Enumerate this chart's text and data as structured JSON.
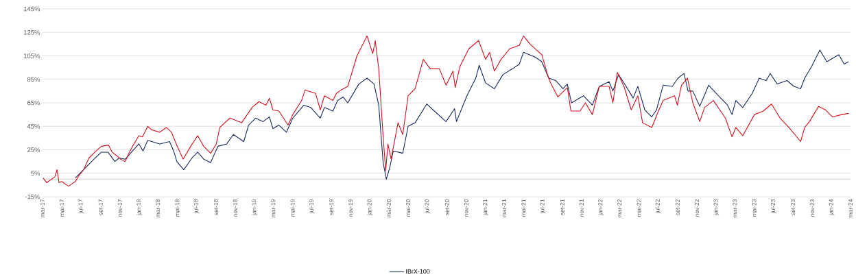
{
  "chart_data": {
    "type": "line",
    "legend": "bottom",
    "grid": "y",
    "marker": "none",
    "line_style": "solid",
    "xlim": [
      "2017-03",
      "2024-03"
    ],
    "xticks": [
      {
        "value": "2017-03",
        "label": "mar-17"
      },
      {
        "value": "2017-05",
        "label": "mai-17"
      },
      {
        "value": "2017-07",
        "label": "jul-17"
      },
      {
        "value": "2017-09",
        "label": "set-17"
      },
      {
        "value": "2017-11",
        "label": "nov-17"
      },
      {
        "value": "2018-01",
        "label": "jan-18"
      },
      {
        "value": "2018-03",
        "label": "mar-18"
      },
      {
        "value": "2018-05",
        "label": "mai-18"
      },
      {
        "value": "2018-07",
        "label": "jul-18"
      },
      {
        "value": "2018-09",
        "label": "set-18"
      },
      {
        "value": "2018-11",
        "label": "nov-18"
      },
      {
        "value": "2019-01",
        "label": "jan-19"
      },
      {
        "value": "2019-03",
        "label": "mar-19"
      },
      {
        "value": "2019-05",
        "label": "mai-19"
      },
      {
        "value": "2019-07",
        "label": "jul-19"
      },
      {
        "value": "2019-09",
        "label": "set-19"
      },
      {
        "value": "2019-11",
        "label": "nov-19"
      },
      {
        "value": "2020-01",
        "label": "jan-20"
      },
      {
        "value": "2020-03",
        "label": "mar-20"
      },
      {
        "value": "2020-05",
        "label": "mai-20"
      },
      {
        "value": "2020-07",
        "label": "jul-20"
      },
      {
        "value": "2020-09",
        "label": "set-20"
      },
      {
        "value": "2020-11",
        "label": "nov-20"
      },
      {
        "value": "2021-01",
        "label": "jan-21"
      },
      {
        "value": "2021-03",
        "label": "mar-21"
      },
      {
        "value": "2021-05",
        "label": "mai-21"
      },
      {
        "value": "2021-07",
        "label": "jul-21"
      },
      {
        "value": "2021-09",
        "label": "set-21"
      },
      {
        "value": "2021-11",
        "label": "nov-21"
      },
      {
        "value": "2022-01",
        "label": "jan-22"
      },
      {
        "value": "2022-03",
        "label": "mar-22"
      },
      {
        "value": "2022-05",
        "label": "mai-22"
      },
      {
        "value": "2022-07",
        "label": "jul-22"
      },
      {
        "value": "2022-09",
        "label": "set-22"
      },
      {
        "value": "2022-11",
        "label": "nov-22"
      },
      {
        "value": "2023-01",
        "label": "jan-23"
      },
      {
        "value": "2023-03",
        "label": "mar-23"
      },
      {
        "value": "2023-05",
        "label": "mai-23"
      },
      {
        "value": "2023-07",
        "label": "jul-23"
      },
      {
        "value": "2023-09",
        "label": "set-23"
      },
      {
        "value": "2023-11",
        "label": "nov-23"
      },
      {
        "value": "2024-01",
        "label": "jan-24"
      },
      {
        "value": "2024-03",
        "label": "mar-24"
      }
    ],
    "ylim": [
      -15,
      145
    ],
    "yticks": [
      {
        "value": -15,
        "label": "-15%"
      },
      {
        "value": 5,
        "label": "5%"
      },
      {
        "value": 25,
        "label": "25%"
      },
      {
        "value": 45,
        "label": "45%"
      },
      {
        "value": 65,
        "label": "65%"
      },
      {
        "value": 85,
        "label": "85%"
      },
      {
        "value": 105,
        "label": "105%"
      },
      {
        "value": 125,
        "label": "125%"
      },
      {
        "value": 145,
        "label": "145%"
      }
    ],
    "ref_lines": [
      {
        "axis": "y",
        "value": 0,
        "color": "#bfbfbf"
      }
    ],
    "series": [
      {
        "name": "IBrX-100",
        "color": "#14285a",
        "x": [
          "2017-06-13",
          "2017-07-20",
          "2017-08-11",
          "2017-09-03",
          "2017-09-24",
          "2017-10-16",
          "2017-10-29",
          "2017-11-18",
          "2017-12-11",
          "2017-12-31",
          "2018-01-13",
          "2018-01-28",
          "2018-03-07",
          "2018-04-07",
          "2018-04-20",
          "2018-04-30",
          "2018-05-22",
          "2018-06-17",
          "2018-07-05",
          "2018-07-24",
          "2018-08-15",
          "2018-09-07",
          "2018-10-05",
          "2018-10-26",
          "2018-11-28",
          "2018-12-13",
          "2019-01-04",
          "2019-01-28",
          "2019-02-17",
          "2019-02-28",
          "2019-03-19",
          "2019-04-12",
          "2019-05-02",
          "2019-06-06",
          "2019-06-28",
          "2019-07-28",
          "2019-08-10",
          "2019-09-06",
          "2019-09-21",
          "2019-10-08",
          "2019-10-23",
          "2019-11-27",
          "2019-12-23",
          "2020-01-14",
          "2020-01-29",
          "2020-02-12",
          "2020-02-22",
          "2020-03-04",
          "2020-03-15",
          "2020-04-14",
          "2020-05-01",
          "2020-05-23",
          "2020-06-29",
          "2020-07-23",
          "2020-08-29",
          "2020-09-25",
          "2020-10-01",
          "2020-11-03",
          "2020-12-01",
          "2020-12-12",
          "2021-01-01",
          "2021-01-29",
          "2021-02-25",
          "2021-03-27",
          "2021-04-18",
          "2021-05-01",
          "2021-06-07",
          "2021-06-28",
          "2021-07-20",
          "2021-08-11",
          "2021-09-03",
          "2021-09-17",
          "2021-09-30",
          "2021-11-07",
          "2021-12-05",
          "2021-12-27",
          "2022-01-27",
          "2022-02-08",
          "2022-02-26",
          "2022-03-22",
          "2022-04-13",
          "2022-04-28",
          "2022-05-20",
          "2022-06-11",
          "2022-06-26",
          "2022-07-17",
          "2022-08-15",
          "2022-09-02",
          "2022-09-21",
          "2022-10-04",
          "2022-10-19",
          "2022-11-10",
          "2022-12-08",
          "2023-01-08",
          "2023-02-06",
          "2023-02-20",
          "2023-03-04",
          "2023-03-26",
          "2023-04-25",
          "2023-05-17",
          "2023-06-08",
          "2023-06-21",
          "2023-07-13",
          "2023-08-13",
          "2023-09-04",
          "2023-09-25",
          "2023-10-08",
          "2023-10-30",
          "2023-11-25",
          "2023-12-17",
          "2024-01-24",
          "2024-02-10",
          "2024-02-24"
        ],
        "values": [
          1,
          11,
          17,
          23,
          23,
          15,
          18,
          17,
          24,
          30,
          24,
          33,
          30,
          32,
          24,
          15,
          8,
          18,
          23,
          17,
          14,
          28,
          30,
          38,
          32,
          46,
          52,
          49,
          53,
          43,
          46,
          40,
          52,
          63,
          61,
          52,
          61,
          58,
          67,
          70,
          65,
          81,
          86,
          81,
          63,
          14,
          0,
          10,
          24,
          22,
          45,
          48,
          64,
          58,
          49,
          60,
          49,
          71,
          86,
          97,
          82,
          77,
          89,
          94,
          98,
          108,
          104,
          100,
          86,
          84,
          77,
          81,
          65,
          71,
          63,
          79,
          83,
          75,
          89,
          79,
          69,
          79,
          59,
          53,
          59,
          80,
          79,
          86,
          90,
          75,
          75,
          62,
          80,
          71,
          63,
          55,
          67,
          61,
          73,
          86,
          84,
          90,
          81,
          84,
          79,
          77,
          86,
          96,
          110,
          100,
          106,
          98,
          100
        ]
      },
      {
        "color": "#d0101e",
        "x": [
          "2017-03-03",
          "2017-03-14",
          "2017-04-09",
          "2017-04-16",
          "2017-04-22",
          "2017-05-01",
          "2017-05-22",
          "2017-06-13",
          "2017-06-24",
          "2017-07-09",
          "2017-07-26",
          "2017-08-18",
          "2017-09-03",
          "2017-09-26",
          "2017-10-07",
          "2017-10-22",
          "2017-11-03",
          "2017-11-18",
          "2017-11-29",
          "2017-12-11",
          "2017-12-31",
          "2018-01-11",
          "2018-01-28",
          "2018-02-09",
          "2018-03-07",
          "2018-03-28",
          "2018-04-13",
          "2018-04-28",
          "2018-05-20",
          "2018-06-13",
          "2018-07-05",
          "2018-07-24",
          "2018-08-15",
          "2018-09-02",
          "2018-09-13",
          "2018-10-15",
          "2018-11-21",
          "2018-12-24",
          "2019-01-15",
          "2019-02-06",
          "2019-02-17",
          "2019-02-28",
          "2019-03-19",
          "2019-04-17",
          "2019-05-02",
          "2019-05-30",
          "2019-06-10",
          "2019-07-13",
          "2019-07-28",
          "2019-08-10",
          "2019-09-06",
          "2019-09-17",
          "2019-10-02",
          "2019-10-23",
          "2019-11-21",
          "2019-12-23",
          "2020-01-10",
          "2020-01-18",
          "2020-01-29",
          "2020-02-12",
          "2020-02-20",
          "2020-02-27",
          "2020-03-08",
          "2020-03-30",
          "2020-04-14",
          "2020-05-01",
          "2020-05-23",
          "2020-06-18",
          "2020-07-10",
          "2020-08-08",
          "2020-08-29",
          "2020-09-20",
          "2020-09-27",
          "2020-10-12",
          "2020-11-09",
          "2020-12-10",
          "2021-01-01",
          "2021-01-14",
          "2021-01-29",
          "2021-02-19",
          "2021-03-18",
          "2021-04-18",
          "2021-05-01",
          "2021-05-22",
          "2021-06-11",
          "2021-06-28",
          "2021-07-14",
          "2021-07-24",
          "2021-08-18",
          "2021-09-17",
          "2021-09-28",
          "2021-10-27",
          "2021-11-13",
          "2021-12-05",
          "2021-12-27",
          "2022-01-27",
          "2022-02-08",
          "2022-02-22",
          "2022-03-15",
          "2022-04-07",
          "2022-04-28",
          "2022-05-13",
          "2022-06-11",
          "2022-07-02",
          "2022-07-17",
          "2022-08-22",
          "2022-08-31",
          "2022-09-13",
          "2022-10-02",
          "2022-10-19",
          "2022-11-10",
          "2022-11-25",
          "2022-12-23",
          "2023-01-30",
          "2023-02-20",
          "2023-03-04",
          "2023-03-26",
          "2023-05-02",
          "2023-05-30",
          "2023-06-25",
          "2023-07-22",
          "2023-08-19",
          "2023-09-25",
          "2023-10-08",
          "2023-10-23",
          "2023-11-21",
          "2023-12-13",
          "2024-01-04",
          "2024-02-03",
          "2024-02-24"
        ],
        "values": [
          1,
          -3,
          2,
          8,
          -3,
          -2,
          -6,
          -2,
          3,
          8,
          18,
          24,
          28,
          29,
          23,
          20,
          17,
          15,
          22,
          28,
          37,
          36,
          45,
          42,
          40,
          44,
          40,
          30,
          17,
          28,
          37,
          28,
          22,
          30,
          44,
          52,
          48,
          61,
          66,
          63,
          69,
          59,
          58,
          46,
          55,
          67,
          76,
          73,
          59,
          71,
          67,
          73,
          76,
          79,
          105,
          122,
          107,
          118,
          94,
          36,
          7,
          30,
          17,
          48,
          38,
          71,
          77,
          102,
          94,
          94,
          80,
          92,
          78,
          96,
          111,
          118,
          102,
          108,
          92,
          102,
          111,
          114,
          122,
          115,
          110,
          106,
          91,
          83,
          70,
          78,
          58,
          58,
          65,
          55,
          79,
          79,
          65,
          91,
          79,
          59,
          71,
          48,
          44,
          58,
          67,
          71,
          63,
          80,
          86,
          65,
          49,
          61,
          67,
          52,
          36,
          44,
          37,
          55,
          58,
          64,
          52,
          44,
          32,
          44,
          49,
          62,
          59,
          53,
          55,
          56
        ]
      }
    ]
  }
}
